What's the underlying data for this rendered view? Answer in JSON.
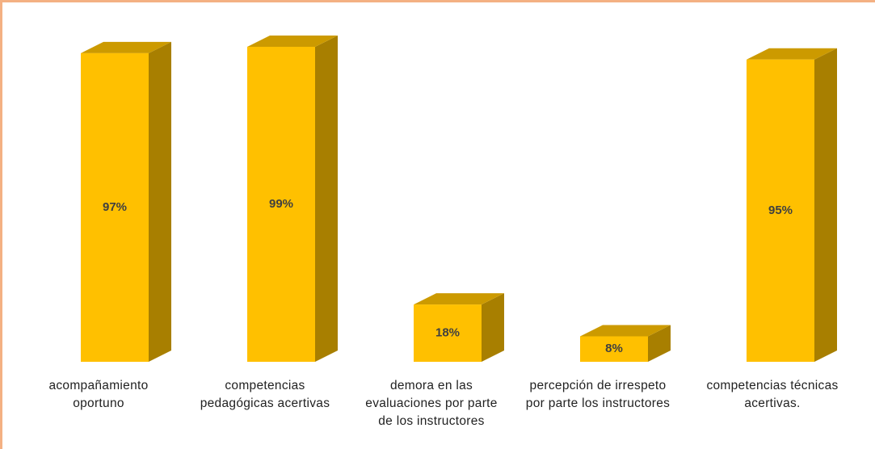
{
  "chart_data": {
    "type": "bar",
    "categories": [
      "acompañamiento oportuno",
      "competencias pedagógicas acertivas",
      "demora en las evaluaciones por parte de los instructores",
      "percepción de irrespeto por parte los instructores",
      "competencias técnicas acertivas."
    ],
    "values": [
      97,
      99,
      18,
      8,
      95
    ],
    "value_labels": [
      "97%",
      "99%",
      "18%",
      "8%",
      "95%"
    ],
    "color": "#ffc000"
  }
}
